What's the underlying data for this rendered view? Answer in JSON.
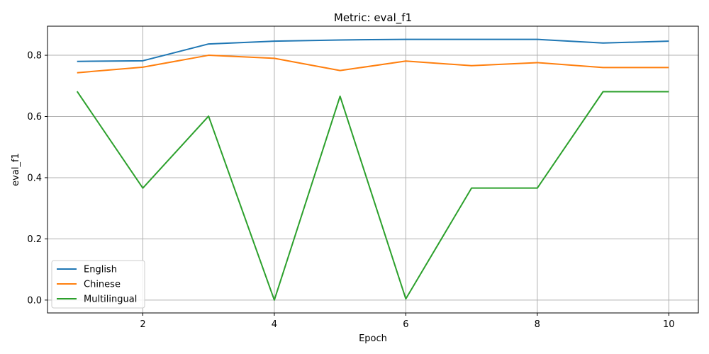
{
  "chart_data": {
    "type": "line",
    "title": "Metric: eval_f1",
    "xlabel": "Epoch",
    "ylabel": "eval_f1",
    "x": [
      1,
      2,
      3,
      4,
      5,
      6,
      7,
      8,
      9,
      10
    ],
    "xlim": [
      0.55,
      10.45
    ],
    "ylim": [
      -0.042,
      0.895
    ],
    "xticks": [
      2,
      4,
      6,
      8,
      10
    ],
    "yticks": [
      0.0,
      0.2,
      0.4,
      0.6,
      0.8
    ],
    "xtick_labels": [
      "2",
      "4",
      "6",
      "8",
      "10"
    ],
    "ytick_labels": [
      "0.0",
      "0.2",
      "0.4",
      "0.6",
      "0.8"
    ],
    "grid": true,
    "legend_position": "lower-left",
    "series": [
      {
        "name": "English",
        "color": "#1f77b4",
        "values": [
          0.78,
          0.782,
          0.837,
          0.846,
          0.85,
          0.852,
          0.852,
          0.852,
          0.84,
          0.846
        ]
      },
      {
        "name": "Chinese",
        "color": "#ff7f0e",
        "values": [
          0.743,
          0.761,
          0.8,
          0.79,
          0.75,
          0.781,
          0.766,
          0.776,
          0.76,
          0.76
        ]
      },
      {
        "name": "Multilingual",
        "color": "#2ca02c",
        "values": [
          0.682,
          0.366,
          0.601,
          0.0,
          0.666,
          0.004,
          0.366,
          0.366,
          0.681,
          0.681
        ]
      }
    ]
  }
}
